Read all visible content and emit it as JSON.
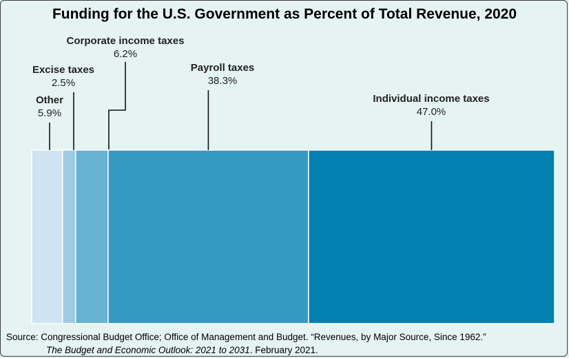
{
  "chart_data": {
    "type": "bar",
    "orientation": "stacked-horizontal",
    "title": "Funding for the U.S. Government as Percent of Total Revenue, 2020",
    "categories": [
      "Other",
      "Excise taxes",
      "Corporate income taxes",
      "Payroll taxes",
      "Individual income taxes"
    ],
    "values": [
      5.9,
      2.5,
      6.2,
      38.3,
      47.0
    ],
    "value_labels": [
      "5.9%",
      "2.5%",
      "6.2%",
      "38.3%",
      "47.0%"
    ],
    "colors": [
      "#cfe4f0",
      "#9ecbe3",
      "#67b1d2",
      "#3699c3",
      "#0280b2"
    ],
    "unit": "%",
    "xlim": [
      0,
      100
    ]
  },
  "source": {
    "line1": "Source: Congressional Budget Office; Office of Management and Budget. “Revenues, by Major Source, Since 1962.”",
    "line2_italic": "The Budget and Economic Outlook: 2021 to 2031",
    "line2_rest": ". February 2021."
  }
}
